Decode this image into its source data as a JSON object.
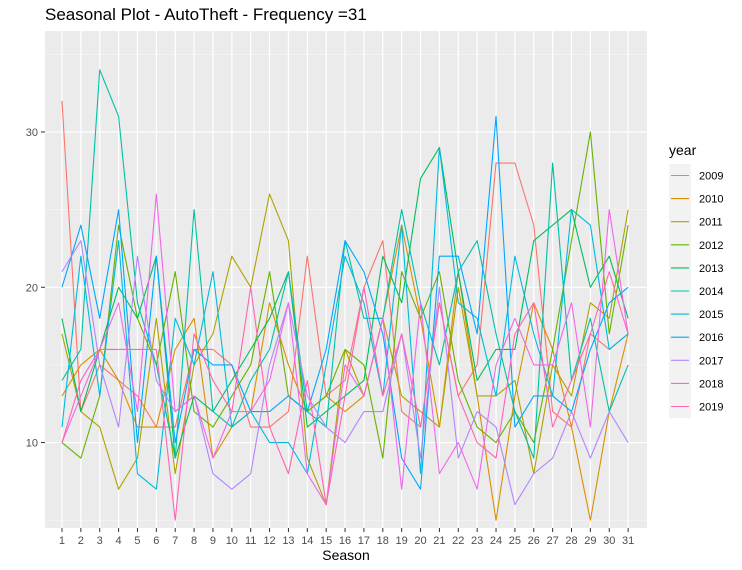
{
  "chart_data": {
    "type": "line",
    "title": "Seasonal Plot - AutoTheft - Frequency =31",
    "xlabel": "Season",
    "ylabel": "",
    "x": [
      1,
      2,
      3,
      4,
      5,
      6,
      7,
      8,
      9,
      10,
      11,
      12,
      13,
      14,
      15,
      16,
      17,
      18,
      19,
      20,
      21,
      22,
      23,
      24,
      25,
      26,
      27,
      28,
      29,
      30,
      31
    ],
    "x_tick_labels": [
      "1",
      "2",
      "3",
      "4",
      "5",
      "6",
      "7",
      "8",
      "9",
      "10",
      "11",
      "12",
      "13",
      "14",
      "15",
      "16",
      "17",
      "18",
      "19",
      "20",
      "21",
      "22",
      "23",
      "24",
      "25",
      "26",
      "27",
      "28",
      "29",
      "30",
      "31"
    ],
    "y_ticks": [
      10,
      20,
      30
    ],
    "y_tick_labels": [
      "10",
      "20",
      "30"
    ],
    "xlim": [
      0.1,
      32.0
    ],
    "ylim": [
      4.5,
      36.5
    ],
    "grid": true,
    "legend_title": "year",
    "legend_position": "right",
    "series": [
      {
        "name": "2009",
        "color": "#F8766D",
        "values": [
          32,
          12,
          15,
          14,
          13,
          11,
          11,
          16,
          16,
          15,
          11,
          11,
          12,
          22,
          13,
          14,
          20,
          23,
          12,
          11,
          19,
          13,
          15,
          28,
          28,
          24,
          12,
          11,
          17,
          16,
          17
        ]
      },
      {
        "name": "2010",
        "color": "#DB8E00",
        "values": [
          13,
          15,
          16,
          14,
          11,
          11,
          16,
          18,
          9,
          11,
          12,
          19,
          15,
          12,
          13,
          12,
          13,
          18,
          24,
          18,
          11,
          21,
          13,
          5,
          13,
          19,
          16,
          11,
          5,
          12,
          17
        ]
      },
      {
        "name": "2011",
        "color": "#AEA200",
        "values": [
          17,
          12,
          11,
          7,
          9,
          18,
          8,
          15,
          17,
          22,
          20,
          26,
          23,
          9,
          6,
          16,
          13,
          18,
          13,
          12,
          11,
          20,
          13,
          13,
          14,
          8,
          15,
          13,
          19,
          18,
          25
        ]
      },
      {
        "name": "2012",
        "color": "#64B200",
        "values": [
          10,
          9,
          13,
          24,
          18,
          15,
          21,
          12,
          11,
          13,
          15,
          21,
          13,
          12,
          13,
          16,
          15,
          9,
          21,
          18,
          21,
          14,
          11,
          10,
          12,
          10,
          16,
          23,
          30,
          17,
          24
        ]
      },
      {
        "name": "2013",
        "color": "#00BD5C",
        "values": [
          18,
          12,
          16,
          20,
          18,
          22,
          9,
          13,
          12,
          14,
          16,
          18,
          21,
          11,
          12,
          13,
          14,
          22,
          19,
          27,
          29,
          21,
          14,
          16,
          16,
          23,
          24,
          25,
          20,
          22,
          18
        ]
      },
      {
        "name": "2014",
        "color": "#00C1A7",
        "values": [
          14,
          16,
          34,
          31,
          19,
          15,
          9,
          25,
          12,
          11,
          14,
          16,
          21,
          12,
          11,
          23,
          18,
          18,
          25,
          19,
          15,
          21,
          23,
          17,
          12,
          9,
          28,
          14,
          18,
          12,
          15
        ]
      },
      {
        "name": "2015",
        "color": "#00BADE",
        "values": [
          11,
          22,
          13,
          23,
          8,
          7,
          18,
          15,
          21,
          11,
          12,
          10,
          10,
          8,
          15,
          22,
          19,
          13,
          24,
          8,
          29,
          19,
          18,
          13,
          22,
          17,
          13,
          25,
          24,
          16,
          17
        ]
      },
      {
        "name": "2016",
        "color": "#00A6FF",
        "values": [
          20,
          24,
          18,
          25,
          10,
          22,
          10,
          16,
          15,
          15,
          12,
          12,
          13,
          12,
          16,
          23,
          21,
          17,
          9,
          7,
          22,
          22,
          17,
          31,
          11,
          13,
          13,
          12,
          16,
          19,
          20
        ]
      },
      {
        "name": "2017",
        "color": "#B385FF",
        "values": [
          21,
          23,
          15,
          11,
          22,
          14,
          12,
          13,
          8,
          7,
          8,
          15,
          19,
          13,
          11,
          10,
          12,
          12,
          17,
          9,
          20,
          9,
          12,
          11,
          6,
          8,
          9,
          12,
          9,
          12,
          10
        ]
      },
      {
        "name": "2018",
        "color": "#EF67EB",
        "values": [
          10,
          13,
          16,
          19,
          12,
          26,
          12,
          13,
          9,
          12,
          12,
          14,
          19,
          8,
          6,
          15,
          13,
          18,
          7,
          19,
          8,
          10,
          7,
          15,
          18,
          15,
          15,
          19,
          11,
          25,
          17
        ]
      },
      {
        "name": "2019",
        "color": "#FF63B6",
        "values": [
          10,
          14,
          16,
          16,
          16,
          16,
          5,
          17,
          14,
          12,
          20,
          11,
          8,
          14,
          6,
          13,
          20,
          13,
          17,
          11,
          19,
          13,
          10,
          9,
          17,
          19,
          11,
          14,
          17,
          21,
          17
        ]
      }
    ]
  }
}
